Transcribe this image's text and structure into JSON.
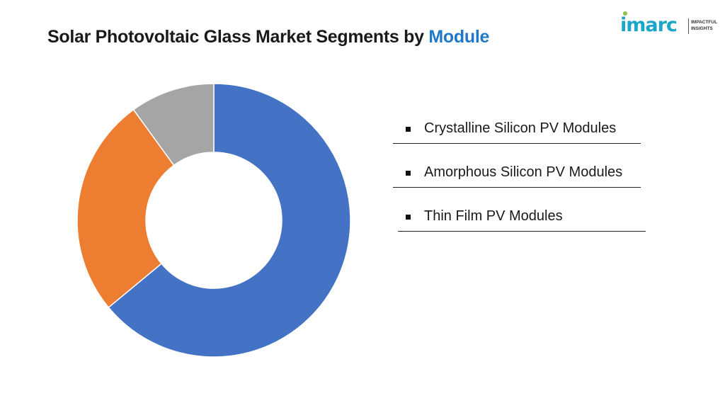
{
  "title": {
    "prefix": "Solar Photovoltaic Glass Market Segments by ",
    "accent": "Module"
  },
  "logo": {
    "word": "imarc",
    "tagline_1": "IMPACTFUL",
    "tagline_2": "INSIGHTS"
  },
  "colors": {
    "accent": "#1f78c8",
    "crystalline": "#4472c4",
    "amorphous": "#ed7d31",
    "thin_film": "#a5a5a5"
  },
  "chart_data": {
    "type": "pie",
    "donut": true,
    "categories": [
      "Crystalline Silicon PV Modules",
      "Amorphous Silicon PV Modules",
      "Thin Film PV Modules"
    ],
    "values": [
      64,
      26,
      10
    ],
    "legend_position": "right"
  }
}
